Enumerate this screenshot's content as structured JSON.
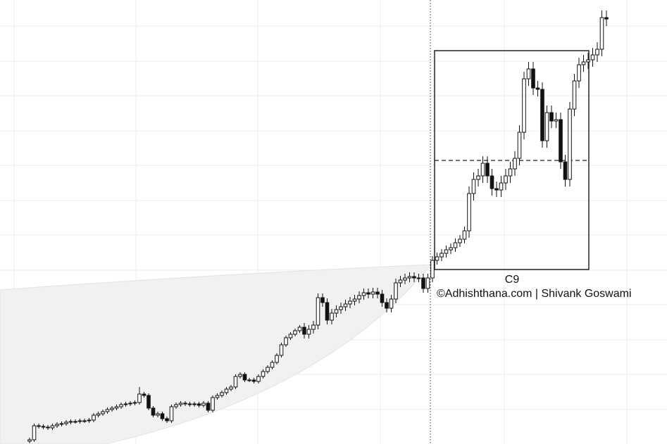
{
  "chart_data": {
    "type": "candlestick",
    "ylim": [
      0,
      631
    ],
    "open": [
      4,
      6,
      26,
      25,
      24,
      23,
      26,
      28,
      29,
      31,
      32,
      32,
      33,
      33,
      34,
      41,
      43,
      46,
      49,
      51,
      53,
      56,
      57,
      58,
      59,
      71,
      69,
      51,
      41,
      43,
      36,
      33,
      53,
      56,
      58,
      57,
      56,
      57,
      55,
      58,
      48,
      66,
      69,
      73,
      78,
      81,
      96,
      99,
      91,
      91,
      89,
      96,
      103,
      109,
      116,
      126,
      141,
      151,
      156,
      161,
      166,
      156,
      163,
      169,
      208,
      201,
      176,
      186,
      191,
      195,
      199,
      203,
      206,
      211,
      215,
      213,
      216,
      213,
      201,
      193,
      206,
      229,
      233,
      236,
      238,
      236,
      236,
      221,
      236,
      261,
      266,
      271,
      276,
      279,
      286,
      291,
      303,
      356,
      376,
      381,
      399,
      381,
      363,
      361,
      371,
      381,
      391,
      406,
      443,
      519,
      533,
      506,
      504,
      431,
      471,
      459,
      461,
      401,
      376,
      476,
      516,
      539,
      543,
      546,
      553,
      561,
      606
    ],
    "high": [
      9,
      29,
      29,
      28,
      27,
      29,
      31,
      32,
      34,
      35,
      35,
      36,
      36,
      37,
      44,
      46,
      49,
      52,
      54,
      56,
      59,
      60,
      61,
      62,
      81,
      74,
      72,
      54,
      46,
      46,
      39,
      56,
      59,
      61,
      61,
      60,
      60,
      60,
      61,
      61,
      69,
      72,
      76,
      81,
      84,
      99,
      102,
      102,
      94,
      94,
      99,
      106,
      112,
      119,
      129,
      144,
      154,
      159,
      164,
      169,
      172,
      169,
      175,
      214,
      214,
      207,
      192,
      197,
      201,
      205,
      209,
      212,
      217,
      221,
      221,
      222,
      222,
      219,
      207,
      212,
      235,
      239,
      242,
      244,
      244,
      242,
      242,
      242,
      267,
      272,
      277,
      282,
      285,
      292,
      297,
      309,
      366,
      386,
      391,
      409,
      409,
      391,
      373,
      381,
      391,
      401,
      416,
      453,
      529,
      543,
      543,
      516,
      514,
      481,
      481,
      471,
      471,
      411,
      486,
      526,
      549,
      553,
      556,
      563,
      571,
      616,
      616
    ],
    "low": [
      1,
      3,
      22,
      21,
      20,
      20,
      23,
      25,
      26,
      28,
      29,
      29,
      30,
      30,
      31,
      38,
      40,
      43,
      46,
      48,
      50,
      53,
      54,
      55,
      56,
      66,
      48,
      38,
      38,
      33,
      30,
      30,
      50,
      53,
      54,
      53,
      53,
      52,
      52,
      45,
      45,
      63,
      66,
      70,
      75,
      78,
      93,
      88,
      88,
      86,
      86,
      93,
      100,
      106,
      113,
      123,
      138,
      148,
      153,
      158,
      150,
      150,
      157,
      163,
      195,
      170,
      170,
      180,
      185,
      189,
      193,
      197,
      200,
      205,
      207,
      207,
      207,
      195,
      187,
      187,
      200,
      223,
      227,
      230,
      230,
      230,
      215,
      215,
      230,
      255,
      260,
      265,
      270,
      273,
      280,
      285,
      293,
      346,
      366,
      371,
      371,
      353,
      351,
      351,
      361,
      371,
      381,
      396,
      433,
      509,
      496,
      494,
      421,
      421,
      449,
      449,
      391,
      366,
      366,
      466,
      506,
      529,
      533,
      536,
      543,
      551,
      594
    ],
    "close": [
      6,
      26,
      25,
      24,
      23,
      26,
      28,
      29,
      31,
      32,
      32,
      33,
      33,
      34,
      41,
      43,
      46,
      49,
      51,
      53,
      56,
      57,
      58,
      59,
      71,
      69,
      51,
      41,
      43,
      36,
      33,
      53,
      56,
      58,
      57,
      56,
      57,
      55,
      58,
      48,
      66,
      69,
      73,
      78,
      81,
      96,
      99,
      91,
      91,
      89,
      96,
      103,
      109,
      116,
      126,
      141,
      151,
      156,
      161,
      166,
      156,
      163,
      169,
      208,
      201,
      176,
      186,
      191,
      195,
      199,
      203,
      206,
      211,
      215,
      213,
      216,
      213,
      201,
      193,
      206,
      229,
      233,
      236,
      238,
      236,
      236,
      221,
      236,
      261,
      266,
      271,
      276,
      279,
      286,
      291,
      303,
      356,
      376,
      381,
      399,
      381,
      363,
      361,
      371,
      381,
      391,
      406,
      443,
      519,
      533,
      506,
      504,
      431,
      471,
      459,
      461,
      401,
      376,
      476,
      516,
      539,
      543,
      546,
      553,
      561,
      606,
      604
    ],
    "box_label": "C9",
    "credit": "©Adhishthana.com | Shivank Goswami"
  }
}
